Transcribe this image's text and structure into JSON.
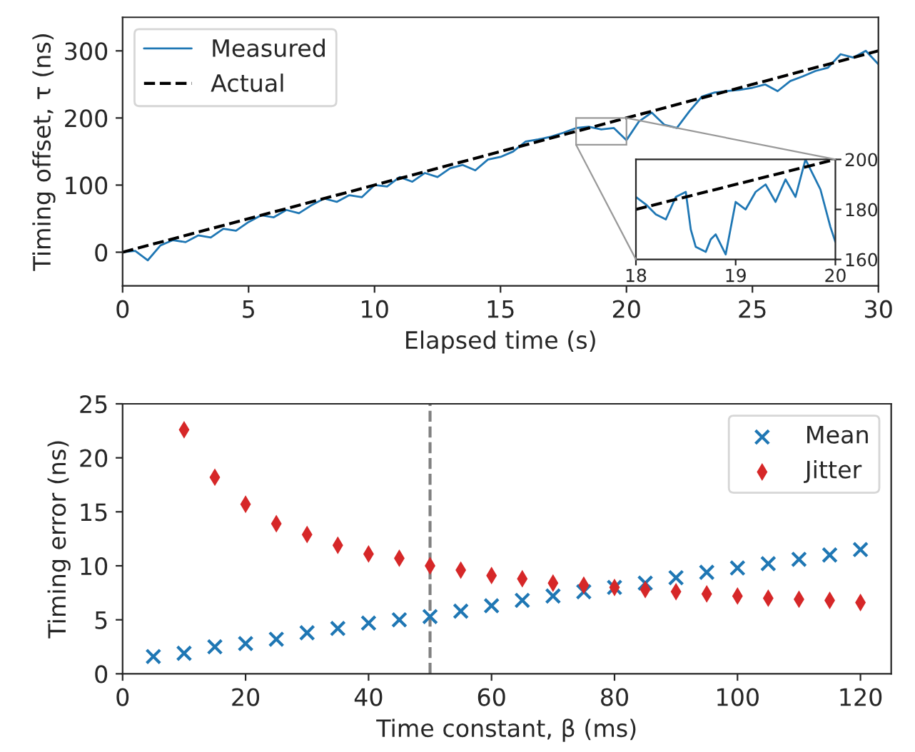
{
  "chart_data": [
    {
      "type": "line",
      "xlabel": "Elapsed time (s)",
      "ylabel": "Timing offset, τ (ns)",
      "xlim": [
        0,
        30
      ],
      "ylim": [
        -50,
        350
      ],
      "xticks": [
        0,
        5,
        10,
        15,
        20,
        25,
        30
      ],
      "yticks": [
        0,
        100,
        200,
        300
      ],
      "legend": "top left",
      "series": [
        {
          "name": "Measured",
          "color": "#1f77b4",
          "line_style": "solid",
          "x": [
            0,
            0.5,
            1,
            1.5,
            2,
            2.5,
            3,
            3.5,
            4,
            4.5,
            5,
            5.5,
            6,
            6.5,
            7,
            7.5,
            8,
            8.5,
            9,
            9.5,
            10,
            10.5,
            11,
            11.5,
            12,
            12.5,
            13,
            13.5,
            14,
            14.5,
            15,
            15.5,
            16,
            16.5,
            17,
            17.5,
            18,
            18.5,
            19,
            19.5,
            20,
            20.5,
            21,
            21.5,
            22,
            22.5,
            23,
            23.5,
            24,
            24.5,
            25,
            25.5,
            26,
            26.5,
            27,
            27.5,
            28,
            28.5,
            29,
            29.5,
            30
          ],
          "values": [
            0,
            2,
            -12,
            10,
            18,
            15,
            25,
            22,
            35,
            32,
            45,
            55,
            52,
            63,
            58,
            70,
            80,
            75,
            85,
            82,
            100,
            98,
            112,
            105,
            118,
            112,
            125,
            130,
            122,
            138,
            142,
            150,
            165,
            168,
            172,
            178,
            185,
            187,
            183,
            185,
            167,
            195,
            208,
            190,
            185,
            210,
            232,
            238,
            240,
            242,
            245,
            250,
            240,
            255,
            262,
            270,
            275,
            295,
            290,
            300,
            280
          ]
        },
        {
          "name": "Actual",
          "color": "#000000",
          "line_style": "dashed",
          "x": [
            0,
            30
          ],
          "values": [
            0,
            300
          ]
        }
      ]
    },
    {
      "type": "line",
      "xlim": [
        18,
        20
      ],
      "ylim": [
        160,
        200
      ],
      "xticks": [
        18,
        19,
        20
      ],
      "yticks": [
        160,
        180,
        200
      ],
      "series": [
        {
          "color": "#1f77b4",
          "line_style": "solid",
          "x": [
            18,
            18.1,
            18.2,
            18.3,
            18.4,
            18.5,
            18.55,
            18.6,
            18.7,
            18.75,
            18.8,
            18.9,
            19,
            19.1,
            19.2,
            19.3,
            19.4,
            19.5,
            19.6,
            19.7,
            19.8,
            19.85,
            19.95,
            20
          ],
          "values": [
            185,
            182,
            178,
            176,
            185,
            187,
            172,
            165,
            163,
            168,
            170,
            162,
            183,
            180,
            187,
            190,
            183,
            192,
            185,
            200,
            192,
            188,
            173,
            167
          ]
        },
        {
          "color": "#000000",
          "line_style": "dashed",
          "x": [
            18,
            20
          ],
          "values": [
            180,
            200
          ]
        }
      ]
    },
    {
      "type": "scatter",
      "xlabel": "Time constant, β (ms)",
      "ylabel": "Timing error (ns)",
      "xlim": [
        0,
        125
      ],
      "ylim": [
        0,
        25
      ],
      "xticks": [
        0,
        20,
        40,
        60,
        80,
        100,
        120
      ],
      "yticks": [
        0,
        5,
        10,
        15,
        20,
        25
      ],
      "legend": "top right",
      "ref_lines": [
        {
          "axis": "x",
          "value": 50,
          "color": "#808080",
          "line_style": "dashed"
        }
      ],
      "series": [
        {
          "name": "Mean",
          "color": "#1f77b4",
          "marker": "cross",
          "x": [
            5,
            10,
            15,
            20,
            25,
            30,
            35,
            40,
            45,
            50,
            55,
            60,
            65,
            70,
            75,
            80,
            85,
            90,
            95,
            100,
            105,
            110,
            115,
            120
          ],
          "values": [
            1.6,
            1.9,
            2.5,
            2.8,
            3.2,
            3.8,
            4.2,
            4.7,
            5.0,
            5.3,
            5.8,
            6.3,
            6.8,
            7.2,
            7.6,
            8.0,
            8.4,
            8.9,
            9.4,
            9.8,
            10.2,
            10.6,
            11.0,
            11.5
          ]
        },
        {
          "name": "Jitter",
          "color": "#d62728",
          "marker": "diamond",
          "x": [
            10,
            15,
            20,
            25,
            30,
            35,
            40,
            45,
            50,
            55,
            60,
            65,
            70,
            75,
            80,
            85,
            90,
            95,
            100,
            105,
            110,
            115,
            120
          ],
          "values": [
            22.6,
            18.2,
            15.7,
            13.9,
            12.9,
            11.9,
            11.1,
            10.7,
            10.0,
            9.6,
            9.1,
            8.8,
            8.4,
            8.2,
            8.0,
            7.8,
            7.6,
            7.4,
            7.2,
            7.0,
            6.9,
            6.8,
            6.6
          ]
        }
      ]
    }
  ]
}
